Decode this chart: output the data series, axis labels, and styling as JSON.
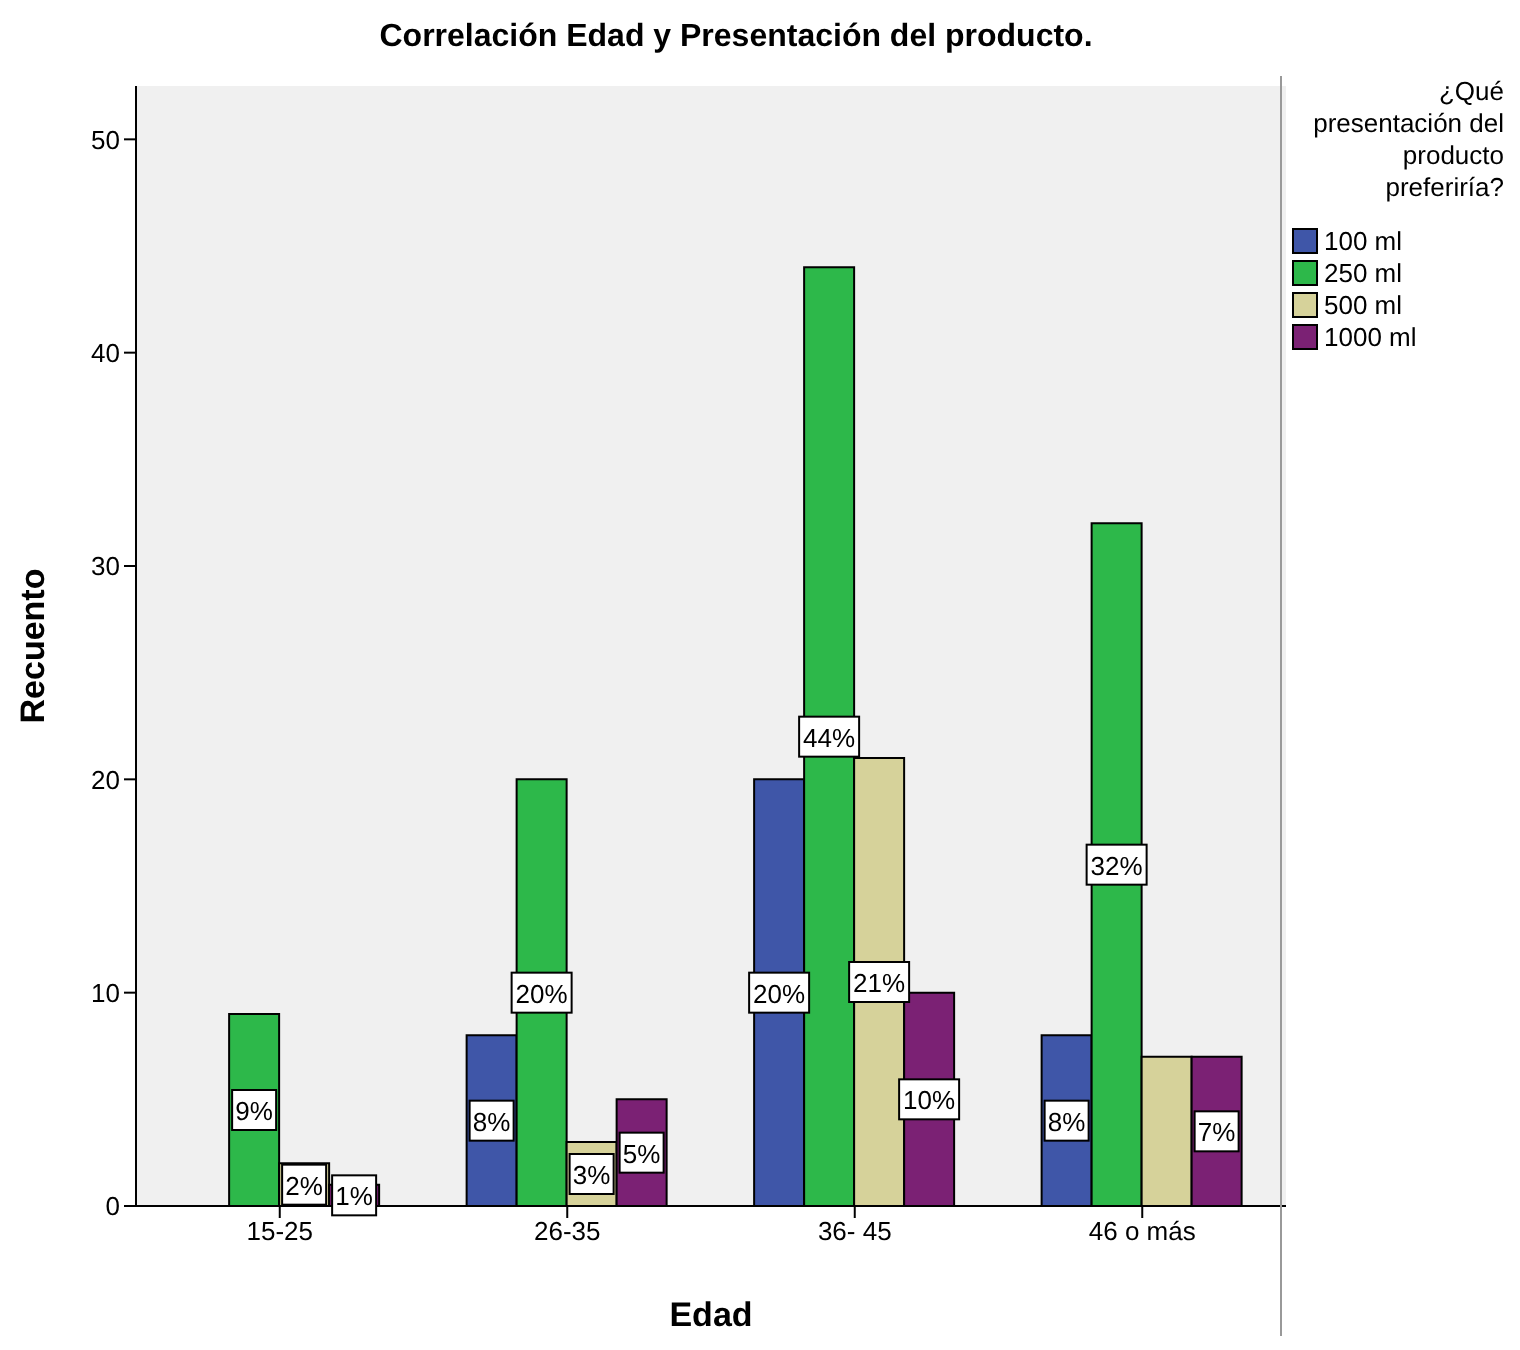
{
  "chart_data": {
    "type": "bar",
    "title": "Correlación Edad y Presentación del producto.",
    "xlabel": "Edad",
    "ylabel": "Recuento",
    "legend_title": "¿Qué presentación del producto preferiría?",
    "legend": "top right",
    "categories": [
      "15-25",
      "26-35",
      "36- 45",
      "46 o más"
    ],
    "series": [
      {
        "name": "100 ml",
        "color": "#3f56a8",
        "values": [
          0,
          8,
          20,
          8
        ],
        "value_labels": [
          null,
          "8%",
          "20%",
          "8%"
        ]
      },
      {
        "name": "250 ml",
        "color": "#2db84a",
        "values": [
          9,
          20,
          44,
          32
        ],
        "value_labels": [
          "9%",
          "20%",
          "44%",
          "32%"
        ]
      },
      {
        "name": "500 ml",
        "color": "#d6d29a",
        "values": [
          2,
          3,
          21,
          7
        ],
        "value_labels": [
          "2%",
          "3%",
          "21%",
          null
        ]
      },
      {
        "name": "1000 ml",
        "color": "#7b2174",
        "values": [
          1,
          5,
          10,
          7
        ],
        "value_labels": [
          "1%",
          "5%",
          "10%",
          "7%"
        ]
      }
    ],
    "ylim": [
      0,
      52.5
    ],
    "yticks": [
      0,
      10,
      20,
      30,
      40,
      50
    ]
  }
}
